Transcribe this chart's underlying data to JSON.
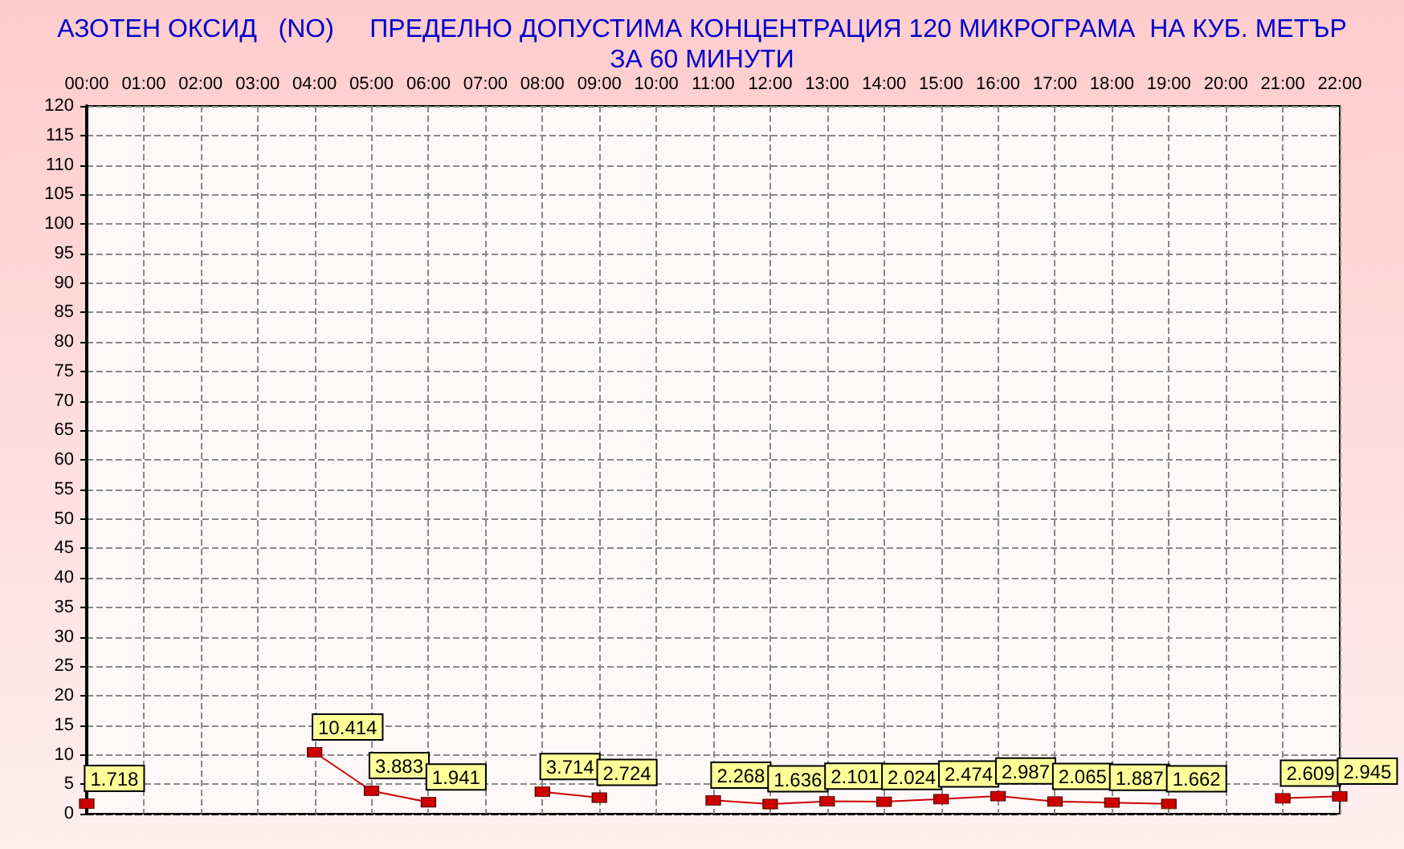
{
  "chart_data": {
    "type": "line",
    "title": "АЗОТЕН ОКСИД   (NO)     ПРЕДЕЛНО ДОПУСТИМА КОНЦЕНТРАЦИЯ 120 МИКРОГРАМА  НА КУБ. МЕТЪР\nЗА 60 МИНУТИ",
    "categories": [
      "00:00",
      "01:00",
      "02:00",
      "03:00",
      "04:00",
      "05:00",
      "06:00",
      "07:00",
      "08:00",
      "09:00",
      "10:00",
      "11:00",
      "12:00",
      "13:00",
      "14:00",
      "15:00",
      "16:00",
      "17:00",
      "18:00",
      "19:00",
      "20:00",
      "21:00",
      "22:00"
    ],
    "series": [
      {
        "color": "#cc0000",
        "values": [
          1.718,
          null,
          null,
          null,
          10.414,
          3.883,
          1.941,
          null,
          3.714,
          2.724,
          null,
          2.268,
          1.636,
          2.101,
          2.024,
          2.474,
          2.987,
          2.065,
          1.887,
          1.662,
          null,
          2.609,
          2.945
        ]
      }
    ],
    "ylim": [
      0,
      120
    ],
    "yticks": [
      0,
      5,
      10,
      15,
      20,
      25,
      30,
      35,
      40,
      45,
      50,
      55,
      60,
      65,
      70,
      75,
      80,
      85,
      90,
      95,
      100,
      105,
      110,
      115,
      120
    ],
    "grid": true,
    "marker": "square",
    "line_style": "solid",
    "data_labels": true
  }
}
